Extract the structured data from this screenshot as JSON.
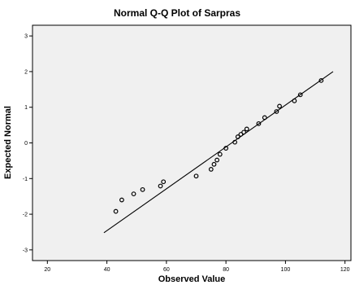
{
  "chart_data": {
    "type": "scatter",
    "title": "Normal Q-Q Plot of Sarpras",
    "xlabel": "Observed Value",
    "ylabel": "Expected Normal",
    "xlim": [
      15,
      122
    ],
    "ylim": [
      -3.3,
      3.3
    ],
    "x_ticks": [
      20,
      40,
      60,
      80,
      100,
      120
    ],
    "y_ticks": [
      -3,
      -2,
      -1,
      0,
      1,
      2,
      3
    ],
    "grid": false,
    "points": [
      {
        "x": 43,
        "y": -1.92
      },
      {
        "x": 45,
        "y": -1.6
      },
      {
        "x": 49,
        "y": -1.43
      },
      {
        "x": 52,
        "y": -1.31
      },
      {
        "x": 58,
        "y": -1.21
      },
      {
        "x": 59,
        "y": -1.09
      },
      {
        "x": 70,
        "y": -0.93
      },
      {
        "x": 75,
        "y": -0.74
      },
      {
        "x": 76,
        "y": -0.6
      },
      {
        "x": 77,
        "y": -0.48
      },
      {
        "x": 78,
        "y": -0.32
      },
      {
        "x": 80,
        "y": -0.15
      },
      {
        "x": 83,
        "y": 0.02
      },
      {
        "x": 84,
        "y": 0.17
      },
      {
        "x": 85,
        "y": 0.24
      },
      {
        "x": 86,
        "y": 0.3
      },
      {
        "x": 87,
        "y": 0.39
      },
      {
        "x": 91,
        "y": 0.54
      },
      {
        "x": 93,
        "y": 0.71
      },
      {
        "x": 97,
        "y": 0.88
      },
      {
        "x": 98,
        "y": 1.03
      },
      {
        "x": 103,
        "y": 1.18
      },
      {
        "x": 105,
        "y": 1.35
      },
      {
        "x": 112,
        "y": 1.75
      }
    ],
    "reference_line": {
      "x": [
        39,
        116
      ],
      "y": [
        -2.52,
        2.0
      ]
    }
  }
}
